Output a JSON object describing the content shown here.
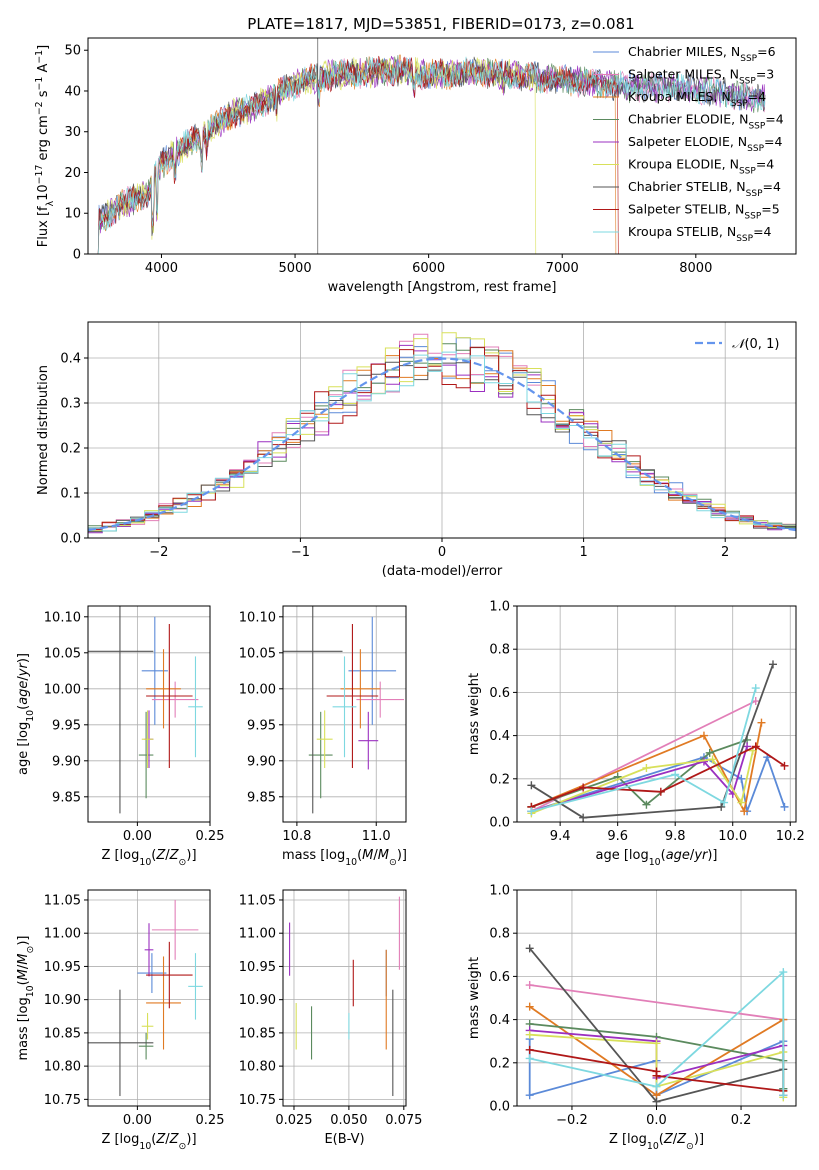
{
  "title": "PLATE=1817, MJD=53851, FIBERID=0173, z=0.081",
  "colors": {
    "Chabrier MILES": "#5b8ad8",
    "Salpeter MILES": "#e27fb8",
    "Kroupa MILES": "#e07a23",
    "Chabrier ELODIE": "#5b8a5e",
    "Salpeter ELODIE": "#9b30c0",
    "Kroupa ELODIE": "#d8e05a",
    "Chabrier STELIB": "#555555",
    "Salpeter STELIB": "#b01818",
    "Kroupa STELIB": "#7ed8e0",
    "gaussian": "#6495ed",
    "grid": "#b0b0b0"
  },
  "chart_data": [
    {
      "type": "line",
      "xlabel": "wavelength [Angstrom, rest frame]",
      "ylabel": "Flux [f_λ10^-17 erg cm^-2 s^-1 A^-1]",
      "xlim": [
        3450,
        8750
      ],
      "ylim": [
        0,
        53
      ],
      "xticks": [
        4000,
        5000,
        6000,
        7000,
        8000
      ],
      "yticks": [
        0,
        10,
        20,
        30,
        40,
        50
      ],
      "grid": false,
      "legend_position": "upper-right",
      "spectrum_shape": [
        [
          3520,
          8
        ],
        [
          3700,
          12
        ],
        [
          3900,
          15
        ],
        [
          4000,
          22
        ],
        [
          4100,
          25
        ],
        [
          4300,
          29
        ],
        [
          4500,
          34
        ],
        [
          4700,
          36
        ],
        [
          4900,
          40
        ],
        [
          5100,
          43
        ],
        [
          5300,
          44
        ],
        [
          5500,
          44.5
        ],
        [
          5800,
          45
        ],
        [
          6000,
          44
        ],
        [
          6300,
          44.5
        ],
        [
          6600,
          44
        ],
        [
          6900,
          43
        ],
        [
          7200,
          42
        ],
        [
          7500,
          41
        ],
        [
          7800,
          41
        ],
        [
          8100,
          40
        ],
        [
          8400,
          38.5
        ],
        [
          8500,
          38
        ]
      ],
      "series": [
        {
          "name": "Chabrier MILES, N_SSP=6",
          "label": "Chabrier MILES",
          "sub": "SSP",
          "n": "=6"
        },
        {
          "name": "Salpeter MILES, N_SSP=3",
          "label": "Salpeter MILES",
          "sub": "SSP",
          "n": "=3"
        },
        {
          "name": "Kroupa MILES, N_SSP=4",
          "label": "Kroupa MILES",
          "sub": "SSP",
          "n": "=4"
        },
        {
          "name": "Chabrier ELODIE, N_SSP=4",
          "label": "Chabrier ELODIE",
          "sub": "SSP",
          "n": "=4"
        },
        {
          "name": "Salpeter ELODIE, N_SSP=4",
          "label": "Salpeter ELODIE",
          "sub": "SSP",
          "n": "=4"
        },
        {
          "name": "Kroupa ELODIE, N_SSP=4",
          "label": "Kroupa ELODIE",
          "sub": "SSP",
          "n": "=4"
        },
        {
          "name": "Chabrier STELIB, N_SSP=4",
          "label": "Chabrier STELIB",
          "sub": "SSP",
          "n": "=4"
        },
        {
          "name": "Salpeter STELIB, N_SSP=5",
          "label": "Salpeter STELIB",
          "sub": "SSP",
          "n": "=5"
        },
        {
          "name": "Kroupa STELIB, N_SSP=4",
          "label": "Kroupa STELIB",
          "sub": "SSP",
          "n": "=4"
        }
      ],
      "drops": [
        {
          "series": "Kroupa ELODIE",
          "x": 6800
        },
        {
          "series": "Salpeter STELIB",
          "x": 7420
        },
        {
          "series": "Kroupa MILES",
          "x": 7400
        }
      ]
    },
    {
      "type": "histogram",
      "xlabel": "(data-model)/error",
      "ylabel": "Normed distribution",
      "xlim": [
        -2.5,
        2.5
      ],
      "ylim": [
        0,
        0.48
      ],
      "xticks": [
        -2,
        -1,
        0,
        1,
        2
      ],
      "yticks": [
        0.0,
        0.1,
        0.2,
        0.3,
        0.4
      ],
      "grid": true,
      "legend": "𝒩(0, 1)",
      "legend_position": "upper-right",
      "bin_width": 0.1,
      "series_names": [
        "Chabrier MILES",
        "Salpeter MILES",
        "Kroupa MILES",
        "Chabrier ELODIE",
        "Salpeter ELODIE",
        "Kroupa ELODIE",
        "Chabrier STELIB",
        "Salpeter STELIB",
        "Kroupa STELIB"
      ]
    },
    {
      "type": "scatter",
      "xlabel": "Z [log10(Z/Z⊙)]",
      "ylabel": "age  [log10(age/yr)]",
      "xlim": [
        -0.17,
        0.25
      ],
      "ylim": [
        9.815,
        10.115
      ],
      "xticks": [
        0.0,
        0.25
      ],
      "yticks": [
        9.85,
        9.9,
        9.95,
        10.0,
        10.05,
        10.1
      ],
      "grid": true,
      "points": [
        {
          "series": "Chabrier MILES",
          "x": 0.06,
          "y": 10.025,
          "xerr": 0.045,
          "yerr": 0.075
        },
        {
          "series": "Salpeter MILES",
          "x": 0.13,
          "y": 9.985,
          "xerr": 0.08,
          "yerr": 0.025
        },
        {
          "series": "Kroupa MILES",
          "x": 0.09,
          "y": 10.0,
          "xerr": 0.06,
          "yerr": 0.055
        },
        {
          "series": "Chabrier ELODIE",
          "x": 0.03,
          "y": 9.908,
          "xerr": 0.025,
          "yerr": 0.06
        },
        {
          "series": "Salpeter ELODIE",
          "x": 0.04,
          "y": 9.93,
          "xerr": 0.015,
          "yerr": 0.04
        },
        {
          "series": "Kroupa ELODIE",
          "x": 0.035,
          "y": 9.93,
          "xerr": 0.02,
          "yerr": 0.04
        },
        {
          "series": "Chabrier STELIB",
          "x": -0.06,
          "y": 10.052,
          "xerr": 0.115,
          "yerr": 0.225
        },
        {
          "series": "Salpeter STELIB",
          "x": 0.11,
          "y": 9.99,
          "xerr": 0.08,
          "yerr": 0.1
        },
        {
          "series": "Kroupa STELIB",
          "x": 0.2,
          "y": 9.975,
          "xerr": 0.025,
          "yerr": 0.07
        }
      ]
    },
    {
      "type": "scatter",
      "xlabel": "mass [log10(M/M⊙)]",
      "ylabel": "",
      "xlim": [
        10.765,
        11.075
      ],
      "ylim": [
        9.815,
        10.115
      ],
      "xticks": [
        10.8,
        11.0
      ],
      "yticks": [
        9.85,
        9.9,
        9.95,
        10.0,
        10.05,
        10.1
      ],
      "grid": true,
      "points": [
        {
          "series": "Chabrier MILES",
          "x": 10.99,
          "y": 10.025,
          "xerr": 0.06,
          "yerr": 0.075
        },
        {
          "series": "Salpeter MILES",
          "x": 11.01,
          "y": 9.985,
          "xerr": 0.06,
          "yerr": 0.025
        },
        {
          "series": "Kroupa MILES",
          "x": 10.96,
          "y": 10.0,
          "xerr": 0.05,
          "yerr": 0.055
        },
        {
          "series": "Chabrier ELODIE",
          "x": 10.86,
          "y": 9.908,
          "xerr": 0.03,
          "yerr": 0.06
        },
        {
          "series": "Salpeter ELODIE",
          "x": 10.98,
          "y": 9.928,
          "xerr": 0.025,
          "yerr": 0.04
        },
        {
          "series": "Kroupa ELODIE",
          "x": 10.87,
          "y": 9.93,
          "xerr": 0.02,
          "yerr": 0.04
        },
        {
          "series": "Chabrier STELIB",
          "x": 10.84,
          "y": 10.052,
          "xerr": 0.075,
          "yerr": 0.225
        },
        {
          "series": "Salpeter STELIB",
          "x": 10.94,
          "y": 9.99,
          "xerr": 0.065,
          "yerr": 0.1
        },
        {
          "series": "Kroupa STELIB",
          "x": 10.92,
          "y": 9.975,
          "xerr": 0.03,
          "yerr": 0.07
        }
      ]
    },
    {
      "type": "line",
      "xlabel": "age  [log10(age/yr)]",
      "ylabel": "mass weight",
      "xlim": [
        9.25,
        10.22
      ],
      "ylim": [
        0,
        1
      ],
      "xticks": [
        9.4,
        9.6,
        9.8,
        10.0,
        10.2
      ],
      "yticks": [
        0.0,
        0.2,
        0.4,
        0.6,
        0.8,
        1.0
      ],
      "grid": true,
      "marker": "+",
      "series": [
        {
          "name": "Chabrier MILES",
          "points": [
            [
              9.3,
              0.05
            ],
            [
              9.9,
              0.3
            ],
            [
              10.03,
              0.2
            ],
            [
              10.05,
              0.05
            ],
            [
              10.12,
              0.3
            ],
            [
              10.18,
              0.07
            ]
          ]
        },
        {
          "name": "Salpeter MILES",
          "points": [
            [
              9.3,
              0.05
            ],
            [
              10.08,
              0.56
            ]
          ]
        },
        {
          "name": "Kroupa MILES",
          "points": [
            [
              9.3,
              0.07
            ],
            [
              9.9,
              0.4
            ],
            [
              10.04,
              0.05
            ],
            [
              10.1,
              0.46
            ]
          ]
        },
        {
          "name": "Chabrier ELODIE",
          "points": [
            [
              9.3,
              0.07
            ],
            [
              9.6,
              0.21
            ],
            [
              9.7,
              0.08
            ],
            [
              9.92,
              0.32
            ],
            [
              10.05,
              0.38
            ]
          ]
        },
        {
          "name": "Salpeter ELODIE",
          "points": [
            [
              9.3,
              0.05
            ],
            [
              9.9,
              0.28
            ],
            [
              10.0,
              0.13
            ],
            [
              10.05,
              0.35
            ]
          ]
        },
        {
          "name": "Kroupa ELODIE",
          "points": [
            [
              9.3,
              0.04
            ],
            [
              9.7,
              0.25
            ],
            [
              9.93,
              0.29
            ],
            [
              10.03,
              0.09
            ],
            [
              10.07,
              0.33
            ]
          ]
        },
        {
          "name": "Chabrier STELIB",
          "points": [
            [
              9.3,
              0.17
            ],
            [
              9.48,
              0.02
            ],
            [
              9.96,
              0.07
            ],
            [
              10.14,
              0.73
            ]
          ]
        },
        {
          "name": "Salpeter STELIB",
          "points": [
            [
              9.3,
              0.07
            ],
            [
              9.48,
              0.16
            ],
            [
              9.75,
              0.14
            ],
            [
              10.08,
              0.35
            ],
            [
              10.18,
              0.26
            ]
          ]
        },
        {
          "name": "Kroupa STELIB",
          "points": [
            [
              9.3,
              0.05
            ],
            [
              9.8,
              0.22
            ],
            [
              9.97,
              0.09
            ],
            [
              10.08,
              0.62
            ]
          ]
        }
      ]
    },
    {
      "type": "scatter",
      "xlabel": "Z [log10(Z/Z⊙)]",
      "ylabel": "mass [log10(M/M⊙)]",
      "xlim": [
        -0.17,
        0.25
      ],
      "ylim": [
        10.74,
        11.065
      ],
      "xticks": [
        0.0,
        0.25
      ],
      "yticks": [
        10.75,
        10.8,
        10.85,
        10.9,
        10.95,
        11.0,
        11.05
      ],
      "grid": true,
      "points": [
        {
          "series": "Chabrier MILES",
          "x": 0.05,
          "y": 10.94,
          "xerr": 0.05,
          "yerr": 0.03
        },
        {
          "series": "Salpeter MILES",
          "x": 0.13,
          "y": 11.005,
          "xerr": 0.08,
          "yerr": 0.045
        },
        {
          "series": "Kroupa MILES",
          "x": 0.09,
          "y": 10.895,
          "xerr": 0.06,
          "yerr": 0.07
        },
        {
          "series": "Chabrier ELODIE",
          "x": 0.03,
          "y": 10.83,
          "xerr": 0.025,
          "yerr": 0.02
        },
        {
          "series": "Salpeter ELODIE",
          "x": 0.04,
          "y": 10.975,
          "xerr": 0.015,
          "yerr": 0.04
        },
        {
          "series": "Kroupa ELODIE",
          "x": 0.035,
          "y": 10.86,
          "xerr": 0.02,
          "yerr": 0.02
        },
        {
          "series": "Chabrier STELIB",
          "x": -0.06,
          "y": 10.835,
          "xerr": 0.115,
          "yerr": 0.08
        },
        {
          "series": "Salpeter STELIB",
          "x": 0.11,
          "y": 10.937,
          "xerr": 0.08,
          "yerr": 0.05
        },
        {
          "series": "Kroupa STELIB",
          "x": 0.2,
          "y": 10.92,
          "xerr": 0.025,
          "yerr": 0.05
        }
      ]
    },
    {
      "type": "scatter",
      "xlabel": "E(B-V)",
      "ylabel": "",
      "xlim": [
        0.02,
        0.076
      ],
      "ylim": [
        10.74,
        11.065
      ],
      "xticks": [
        0.025,
        0.05,
        0.075
      ],
      "yticks": [
        10.75,
        10.8,
        10.85,
        10.9,
        10.95,
        11.0,
        11.05
      ],
      "grid": true,
      "points": [
        {
          "series": "Chabrier MILES",
          "x": 0.067,
          "y": 10.94,
          "xerr": 0.0,
          "yerr": 0.035
        },
        {
          "series": "Salpeter MILES",
          "x": 0.073,
          "y": 11.0,
          "xerr": 0.0,
          "yerr": 0.055
        },
        {
          "series": "Kroupa MILES",
          "x": 0.067,
          "y": 10.9,
          "xerr": 0.0,
          "yerr": 0.075
        },
        {
          "series": "Chabrier ELODIE",
          "x": 0.033,
          "y": 10.85,
          "xerr": 0.0,
          "yerr": 0.04
        },
        {
          "series": "Salpeter ELODIE",
          "x": 0.023,
          "y": 10.976,
          "xerr": 0.0,
          "yerr": 0.04
        },
        {
          "series": "Kroupa ELODIE",
          "x": 0.026,
          "y": 10.86,
          "xerr": 0.0,
          "yerr": 0.035
        },
        {
          "series": "Chabrier STELIB",
          "x": 0.07,
          "y": 10.835,
          "xerr": 0.0,
          "yerr": 0.08
        },
        {
          "series": "Salpeter STELIB",
          "x": 0.052,
          "y": 10.925,
          "xerr": 0.0,
          "yerr": 0.035
        },
        {
          "series": "Kroupa STELIB",
          "x": 0.05,
          "y": 10.86,
          "xerr": 0.0,
          "yerr": 0.02
        }
      ]
    },
    {
      "type": "line",
      "xlabel": "Z [log10(Z/Z⊙)]",
      "ylabel": "mass weight",
      "xlim": [
        -0.33,
        0.33
      ],
      "ylim": [
        0,
        1
      ],
      "xticks": [
        -0.2,
        0.0,
        0.2
      ],
      "yticks": [
        0.0,
        0.2,
        0.4,
        0.6,
        0.8,
        1.0
      ],
      "grid": true,
      "marker": "+",
      "series": [
        {
          "name": "Chabrier MILES",
          "points": [
            [
              -0.3,
              0.31
            ],
            [
              -0.3,
              0.05
            ],
            [
              0.0,
              0.21
            ],
            [
              0.0,
              0.05
            ],
            [
              0.3,
              0.3
            ],
            [
              0.3,
              0.08
            ]
          ]
        },
        {
          "name": "Salpeter MILES",
          "points": [
            [
              -0.3,
              0.56
            ],
            [
              0.3,
              0.4
            ],
            [
              0.3,
              0.05
            ]
          ]
        },
        {
          "name": "Kroupa MILES",
          "points": [
            [
              -0.3,
              0.46
            ],
            [
              0.0,
              0.05
            ],
            [
              0.3,
              0.4
            ],
            [
              0.3,
              0.07
            ]
          ]
        },
        {
          "name": "Chabrier ELODIE",
          "points": [
            [
              -0.3,
              0.38
            ],
            [
              0.0,
              0.32
            ],
            [
              0.3,
              0.21
            ],
            [
              0.3,
              0.08
            ]
          ]
        },
        {
          "name": "Salpeter ELODIE",
          "points": [
            [
              -0.3,
              0.35
            ],
            [
              0.0,
              0.3
            ],
            [
              0.0,
              0.13
            ],
            [
              0.3,
              0.28
            ],
            [
              0.3,
              0.05
            ]
          ]
        },
        {
          "name": "Kroupa ELODIE",
          "points": [
            [
              -0.3,
              0.33
            ],
            [
              0.0,
              0.29
            ],
            [
              0.0,
              0.09
            ],
            [
              0.3,
              0.25
            ],
            [
              0.3,
              0.04
            ]
          ]
        },
        {
          "name": "Chabrier STELIB",
          "points": [
            [
              -0.3,
              0.73
            ],
            [
              0.0,
              0.02
            ],
            [
              0.3,
              0.17
            ]
          ]
        },
        {
          "name": "Salpeter STELIB",
          "points": [
            [
              -0.3,
              0.26
            ],
            [
              0.0,
              0.16
            ],
            [
              0.0,
              0.14
            ],
            [
              0.3,
              0.07
            ]
          ]
        },
        {
          "name": "Kroupa STELIB",
          "points": [
            [
              -0.3,
              0.22
            ],
            [
              0.0,
              0.09
            ],
            [
              0.3,
              0.62
            ],
            [
              0.3,
              0.05
            ]
          ]
        }
      ]
    }
  ]
}
